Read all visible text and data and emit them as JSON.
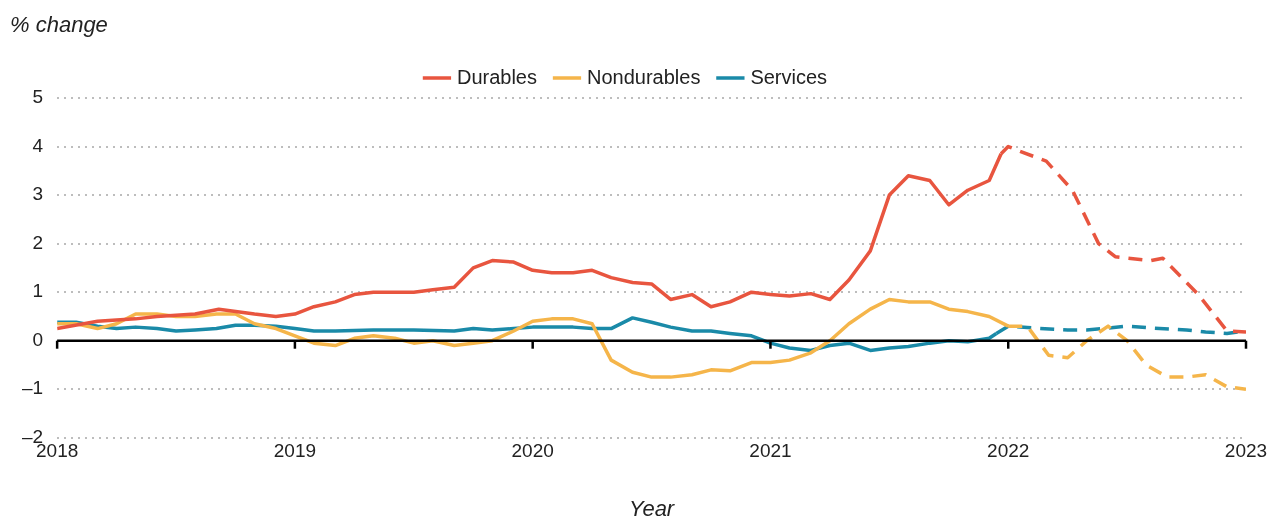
{
  "chart_data": {
    "type": "line",
    "xlabel": "Year",
    "ylabel": "% change",
    "xlim": [
      2018,
      2023
    ],
    "xticks": [
      2018,
      2019,
      2020,
      2021,
      2022,
      2023
    ],
    "ylim": [
      -2,
      5
    ],
    "yticks": [
      {
        "value": -2,
        "label": "–2"
      },
      {
        "value": -1,
        "label": "–1"
      },
      0,
      1,
      2,
      3,
      4,
      5
    ],
    "grid": "y",
    "legend": "top",
    "marker": "none",
    "series": [
      {
        "name": "Durables",
        "color": "#e8553f",
        "line_style": "solid",
        "x": [
          2018.0,
          2018.17,
          2018.33,
          2018.42,
          2018.58,
          2018.68,
          2018.83,
          2018.92,
          2019.0,
          2019.08,
          2019.17,
          2019.25,
          2019.33,
          2019.5,
          2019.58,
          2019.67,
          2019.75,
          2019.83,
          2019.92,
          2020.0,
          2020.08,
          2020.17,
          2020.25,
          2020.33,
          2020.42,
          2020.5,
          2020.58,
          2020.67,
          2020.75,
          2020.83,
          2020.92,
          2021.0,
          2021.08,
          2021.17,
          2021.25,
          2021.33,
          2021.42,
          2021.5,
          2021.58,
          2021.67,
          2021.75,
          2021.83,
          2021.92,
          2021.97
        ],
        "values": [
          0.25,
          0.4,
          0.45,
          0.5,
          0.55,
          0.65,
          0.55,
          0.5,
          0.55,
          0.7,
          0.8,
          0.95,
          1.0,
          1.0,
          1.05,
          1.1,
          1.5,
          1.65,
          1.62,
          1.45,
          1.4,
          1.4,
          1.45,
          1.3,
          1.2,
          1.17,
          0.85,
          0.95,
          0.7,
          0.8,
          1.0,
          0.95,
          0.92,
          0.97,
          0.85,
          1.25,
          1.85,
          3.0,
          3.4,
          3.3,
          2.8,
          3.1,
          3.3,
          3.85
        ]
      },
      {
        "color": "#e8553f",
        "line_style": "dashed",
        "x": [
          2021.97,
          2022.0,
          2022.05,
          2022.16,
          2022.27,
          2022.38,
          2022.45,
          2022.6,
          2022.65,
          2022.8,
          2022.92,
          2023.0
        ],
        "values": [
          3.85,
          4.0,
          3.9,
          3.7,
          3.1,
          2.0,
          1.73,
          1.65,
          1.7,
          0.95,
          0.2,
          0.18
        ]
      },
      {
        "name": "Nondurables",
        "color": "#f5b54a",
        "line_style": "solid",
        "x": [
          2018.0,
          2018.08,
          2018.17,
          2018.25,
          2018.33,
          2018.42,
          2018.5,
          2018.58,
          2018.67,
          2018.75,
          2018.83,
          2018.92,
          2019.0,
          2019.08,
          2019.17,
          2019.25,
          2019.33,
          2019.42,
          2019.5,
          2019.58,
          2019.67,
          2019.75,
          2019.83,
          2019.92,
          2020.0,
          2020.08,
          2020.17,
          2020.25,
          2020.33,
          2020.42,
          2020.5,
          2020.58,
          2020.67,
          2020.75,
          2020.83,
          2020.92,
          2021.0,
          2021.08,
          2021.17,
          2021.25,
          2021.33,
          2021.42,
          2021.5,
          2021.58,
          2021.67,
          2021.75,
          2021.83,
          2021.92,
          2022.0
        ],
        "values": [
          0.35,
          0.35,
          0.25,
          0.35,
          0.55,
          0.55,
          0.5,
          0.5,
          0.55,
          0.55,
          0.35,
          0.25,
          0.1,
          -0.05,
          -0.1,
          0.05,
          0.1,
          0.05,
          -0.05,
          0.0,
          -0.1,
          -0.05,
          0.0,
          0.2,
          0.4,
          0.45,
          0.45,
          0.35,
          -0.4,
          -0.65,
          -0.75,
          -0.75,
          -0.7,
          -0.6,
          -0.62,
          -0.45,
          -0.45,
          -0.4,
          -0.25,
          0.0,
          0.35,
          0.65,
          0.85,
          0.8,
          0.8,
          0.65,
          0.6,
          0.5,
          0.3
        ]
      },
      {
        "color": "#f5b54a",
        "line_style": "dashed",
        "x": [
          2022.0,
          2022.08,
          2022.17,
          2022.25,
          2022.33,
          2022.42,
          2022.5,
          2022.58,
          2022.67,
          2022.75,
          2022.83,
          2022.92,
          2023.0
        ],
        "values": [
          0.3,
          0.3,
          -0.3,
          -0.35,
          0.0,
          0.3,
          0.0,
          -0.5,
          -0.75,
          -0.75,
          -0.7,
          -0.95,
          -1.0
        ]
      },
      {
        "name": "Services",
        "color": "#1a8aa8",
        "line_style": "solid",
        "x": [
          2018.0,
          2018.08,
          2018.17,
          2018.25,
          2018.33,
          2018.42,
          2018.5,
          2018.58,
          2018.67,
          2018.75,
          2018.83,
          2018.92,
          2019.0,
          2019.08,
          2019.17,
          2019.33,
          2019.5,
          2019.67,
          2019.75,
          2019.83,
          2019.92,
          2020.0,
          2020.17,
          2020.25,
          2020.33,
          2020.42,
          2020.5,
          2020.58,
          2020.67,
          2020.75,
          2020.83,
          2020.92,
          2021.0,
          2021.08,
          2021.17,
          2021.25,
          2021.33,
          2021.42,
          2021.5,
          2021.58,
          2021.67,
          2021.75,
          2021.83,
          2021.92,
          2021.95
        ],
        "values": [
          0.38,
          0.38,
          0.3,
          0.25,
          0.28,
          0.25,
          0.2,
          0.22,
          0.25,
          0.32,
          0.32,
          0.3,
          0.25,
          0.2,
          0.2,
          0.22,
          0.22,
          0.2,
          0.25,
          0.22,
          0.25,
          0.28,
          0.28,
          0.25,
          0.25,
          0.47,
          0.38,
          0.28,
          0.2,
          0.2,
          0.15,
          0.1,
          -0.05,
          -0.15,
          -0.2,
          -0.1,
          -0.05,
          -0.2,
          -0.15,
          -0.12,
          -0.05,
          0.0,
          -0.02,
          0.05,
          0.15
        ]
      },
      {
        "color": "#1a8aa8",
        "line_style": "dashed",
        "x": [
          2021.95,
          2022.0,
          2022.08,
          2022.25,
          2022.33,
          2022.5,
          2022.58,
          2022.75,
          2022.83,
          2022.92,
          2023.0
        ],
        "values": [
          0.15,
          0.3,
          0.27,
          0.22,
          0.22,
          0.3,
          0.27,
          0.22,
          0.18,
          0.15,
          0.2
        ]
      }
    ]
  }
}
